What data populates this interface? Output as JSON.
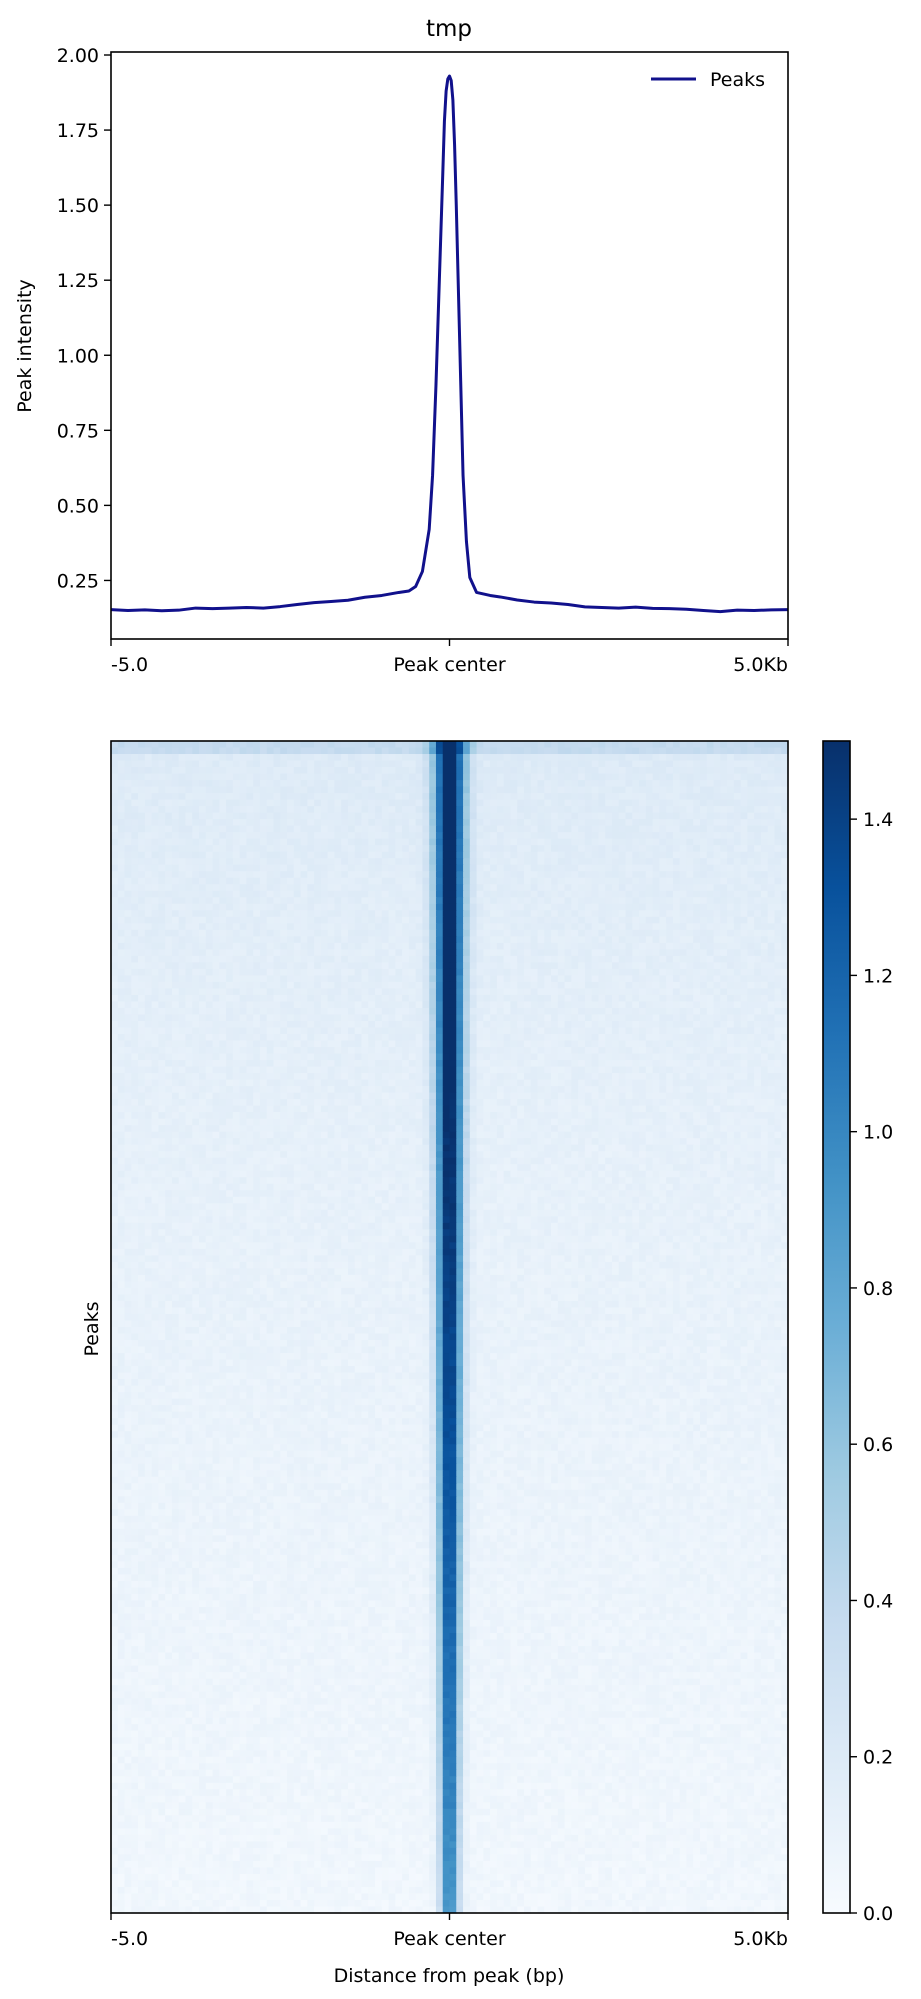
{
  "chart_data": [
    {
      "type": "line",
      "title": "tmp",
      "xlabel": "",
      "ylabel": "Peak intensity",
      "x_tick_labels": [
        "-5.0",
        "Peak center",
        "5.0Kb"
      ],
      "x_tick_values": [
        -5000,
        0,
        5000
      ],
      "xlim": [
        -5000,
        5000
      ],
      "ylim": [
        0.055,
        2.01
      ],
      "y_ticks": [
        0.25,
        0.5,
        0.75,
        1.0,
        1.25,
        1.5,
        1.75,
        2.0
      ],
      "y_tick_labels": [
        "0.25",
        "0.50",
        "0.75",
        "1.00",
        "1.25",
        "1.50",
        "1.75",
        "2.00"
      ],
      "legend_position": "top-right",
      "series": [
        {
          "name": "Peaks",
          "color": "#11118c",
          "x": [
            -5000,
            -4750,
            -4500,
            -4250,
            -4000,
            -3750,
            -3500,
            -3250,
            -3000,
            -2750,
            -2500,
            -2250,
            -2000,
            -1750,
            -1500,
            -1250,
            -1000,
            -750,
            -600,
            -500,
            -400,
            -300,
            -250,
            -200,
            -150,
            -100,
            -75,
            -50,
            -25,
            0,
            25,
            50,
            75,
            100,
            150,
            200,
            250,
            300,
            400,
            500,
            600,
            750,
            1000,
            1250,
            1500,
            1750,
            2000,
            2250,
            2500,
            2750,
            3000,
            3250,
            3500,
            3750,
            4000,
            4250,
            4500,
            4750,
            5000
          ],
          "y": [
            0.153,
            0.15,
            0.152,
            0.149,
            0.151,
            0.158,
            0.156,
            0.158,
            0.16,
            0.158,
            0.163,
            0.17,
            0.176,
            0.18,
            0.184,
            0.194,
            0.2,
            0.21,
            0.215,
            0.23,
            0.28,
            0.42,
            0.6,
            0.9,
            1.25,
            1.6,
            1.78,
            1.88,
            1.92,
            1.93,
            1.915,
            1.85,
            1.7,
            1.5,
            1.05,
            0.6,
            0.38,
            0.26,
            0.21,
            0.205,
            0.2,
            0.195,
            0.185,
            0.178,
            0.175,
            0.17,
            0.162,
            0.16,
            0.158,
            0.161,
            0.157,
            0.156,
            0.154,
            0.15,
            0.146,
            0.151,
            0.15,
            0.152,
            0.153
          ]
        }
      ]
    },
    {
      "type": "heatmap",
      "title": "",
      "xlabel": "Distance from peak (bp)",
      "ylabel": "Peaks",
      "x_tick_labels": [
        "-5.0",
        "Peak center",
        "5.0Kb"
      ],
      "x_tick_values": [
        -5000,
        0,
        5000
      ],
      "xlim": [
        -5000,
        5000
      ],
      "colormap": "Blues",
      "colorbar": {
        "min": 0.0,
        "max": 1.5,
        "ticks": [
          0.0,
          0.2,
          0.4,
          0.6,
          0.8,
          1.0,
          1.2,
          1.4
        ],
        "tick_labels": [
          "0.0",
          "0.2",
          "0.4",
          "0.6",
          "0.8",
          "1.0",
          "1.2",
          "1.4"
        ]
      },
      "profile": {
        "center_value": 1.5,
        "center_width_bp": 320,
        "background_top": 0.2,
        "background_bottom": 0.05
      }
    }
  ]
}
